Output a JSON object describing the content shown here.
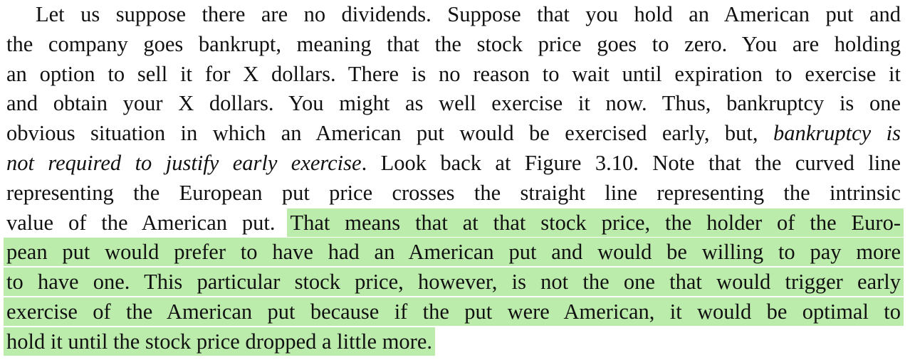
{
  "paragraph": {
    "lines": [
      {
        "segments": [
          {
            "text": "Let us suppose there are no dividends. Suppose that you hold an American put and"
          }
        ]
      },
      {
        "segments": [
          {
            "text": "the company goes bankrupt, meaning that the stock price goes to zero. You are holding"
          }
        ]
      },
      {
        "segments": [
          {
            "text": "an option to sell it for X dollars. There is no reason to wait until expiration to exercise it"
          }
        ]
      },
      {
        "segments": [
          {
            "text": "and obtain your X dollars. You might as well exercise it now. Thus, bankruptcy is one"
          }
        ]
      },
      {
        "segments": [
          {
            "text": "obvious situation in which an American put would be exercised early, but, "
          },
          {
            "text": "bankruptcy is",
            "italic": true
          }
        ]
      },
      {
        "segments": [
          {
            "text": "not required to justify early exercise",
            "italic": true
          },
          {
            "text": ". Look back at Figure 3.10. Note that the curved line"
          }
        ]
      },
      {
        "segments": [
          {
            "text": "representing the European put price crosses the straight line representing the intrinsic"
          }
        ]
      },
      {
        "segments": [
          {
            "text": "value of the American put. "
          },
          {
            "text": "That means that at that stock price, the holder of the Euro-",
            "highlight": true
          }
        ]
      },
      {
        "segments": [
          {
            "text": "pean put would prefer to have had an American put and would be willing to pay more",
            "highlight": true
          }
        ]
      },
      {
        "segments": [
          {
            "text": "to have one. This particular stock price, however, is not the one that would trigger early",
            "highlight": true
          }
        ]
      },
      {
        "segments": [
          {
            "text": "exercise of the American put because if the put were American, it would be optimal to",
            "highlight": true
          }
        ]
      },
      {
        "segments": [
          {
            "text": "hold it until the stock price dropped a little more.",
            "highlight": true
          }
        ]
      }
    ]
  },
  "colors": {
    "highlight": "#bdeeb0",
    "highlight_overlap": "#8ed97a",
    "text": "#111111"
  }
}
